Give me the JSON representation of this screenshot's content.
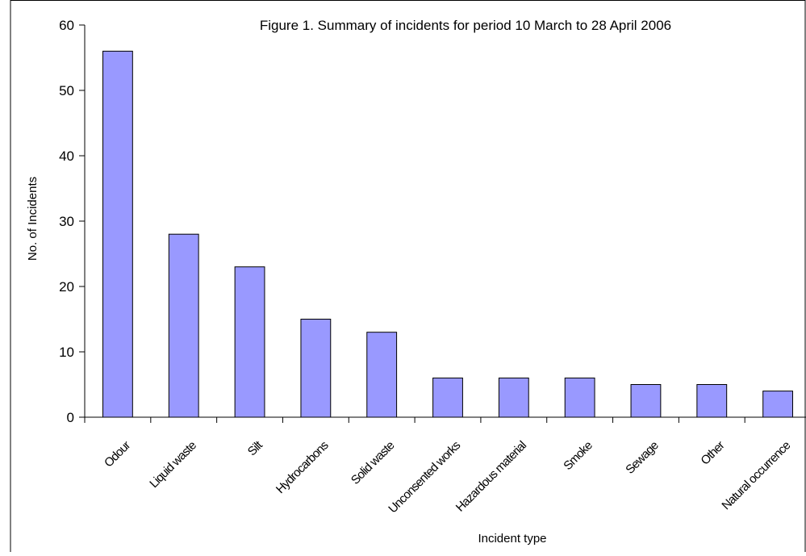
{
  "chart_data": {
    "type": "bar",
    "title": "Figure 1. Summary of incidents for period 10 March  to 28 April 2006",
    "xlabel": "Incident type",
    "ylabel": "No. of Incidents",
    "categories": [
      "Odour",
      "Liquid waste",
      "Silt",
      "Hydrocarbons",
      "Solid waste",
      "Unconsented works",
      "Hazardous material",
      "Smoke",
      "Sewage",
      "Other",
      "Natural occurrence"
    ],
    "values": [
      56,
      28,
      23,
      15,
      13,
      6,
      6,
      6,
      5,
      5,
      4
    ],
    "ylim": [
      0,
      60
    ],
    "yticks": [
      0,
      10,
      20,
      30,
      40,
      50,
      60
    ],
    "grid": false,
    "legend": "none",
    "colors": {
      "bar_fill": "#9999ff",
      "bar_stroke": "#000000",
      "axis": "#000000",
      "background": "#ffffff"
    }
  }
}
